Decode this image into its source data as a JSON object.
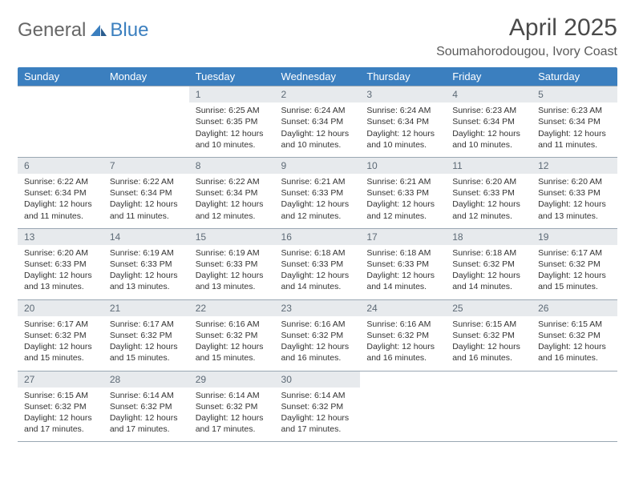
{
  "brand": {
    "part1": "General",
    "part2": "Blue"
  },
  "title": "April 2025",
  "location": "Soumahorodougou, Ivory Coast",
  "colors": {
    "header_bg": "#3b7fbf",
    "header_text": "#ffffff",
    "daynum_bg": "#e7eaed",
    "daynum_text": "#5d6a76",
    "rule": "#9aa7b3"
  },
  "weekdays": [
    "Sunday",
    "Monday",
    "Tuesday",
    "Wednesday",
    "Thursday",
    "Friday",
    "Saturday"
  ],
  "weeks": [
    [
      {
        "n": "",
        "sr": "",
        "ss": "",
        "dl": ""
      },
      {
        "n": "",
        "sr": "",
        "ss": "",
        "dl": ""
      },
      {
        "n": "1",
        "sr": "6:25 AM",
        "ss": "6:35 PM",
        "dl": "12 hours and 10 minutes."
      },
      {
        "n": "2",
        "sr": "6:24 AM",
        "ss": "6:34 PM",
        "dl": "12 hours and 10 minutes."
      },
      {
        "n": "3",
        "sr": "6:24 AM",
        "ss": "6:34 PM",
        "dl": "12 hours and 10 minutes."
      },
      {
        "n": "4",
        "sr": "6:23 AM",
        "ss": "6:34 PM",
        "dl": "12 hours and 10 minutes."
      },
      {
        "n": "5",
        "sr": "6:23 AM",
        "ss": "6:34 PM",
        "dl": "12 hours and 11 minutes."
      }
    ],
    [
      {
        "n": "6",
        "sr": "6:22 AM",
        "ss": "6:34 PM",
        "dl": "12 hours and 11 minutes."
      },
      {
        "n": "7",
        "sr": "6:22 AM",
        "ss": "6:34 PM",
        "dl": "12 hours and 11 minutes."
      },
      {
        "n": "8",
        "sr": "6:22 AM",
        "ss": "6:34 PM",
        "dl": "12 hours and 12 minutes."
      },
      {
        "n": "9",
        "sr": "6:21 AM",
        "ss": "6:33 PM",
        "dl": "12 hours and 12 minutes."
      },
      {
        "n": "10",
        "sr": "6:21 AM",
        "ss": "6:33 PM",
        "dl": "12 hours and 12 minutes."
      },
      {
        "n": "11",
        "sr": "6:20 AM",
        "ss": "6:33 PM",
        "dl": "12 hours and 12 minutes."
      },
      {
        "n": "12",
        "sr": "6:20 AM",
        "ss": "6:33 PM",
        "dl": "12 hours and 13 minutes."
      }
    ],
    [
      {
        "n": "13",
        "sr": "6:20 AM",
        "ss": "6:33 PM",
        "dl": "12 hours and 13 minutes."
      },
      {
        "n": "14",
        "sr": "6:19 AM",
        "ss": "6:33 PM",
        "dl": "12 hours and 13 minutes."
      },
      {
        "n": "15",
        "sr": "6:19 AM",
        "ss": "6:33 PM",
        "dl": "12 hours and 13 minutes."
      },
      {
        "n": "16",
        "sr": "6:18 AM",
        "ss": "6:33 PM",
        "dl": "12 hours and 14 minutes."
      },
      {
        "n": "17",
        "sr": "6:18 AM",
        "ss": "6:33 PM",
        "dl": "12 hours and 14 minutes."
      },
      {
        "n": "18",
        "sr": "6:18 AM",
        "ss": "6:32 PM",
        "dl": "12 hours and 14 minutes."
      },
      {
        "n": "19",
        "sr": "6:17 AM",
        "ss": "6:32 PM",
        "dl": "12 hours and 15 minutes."
      }
    ],
    [
      {
        "n": "20",
        "sr": "6:17 AM",
        "ss": "6:32 PM",
        "dl": "12 hours and 15 minutes."
      },
      {
        "n": "21",
        "sr": "6:17 AM",
        "ss": "6:32 PM",
        "dl": "12 hours and 15 minutes."
      },
      {
        "n": "22",
        "sr": "6:16 AM",
        "ss": "6:32 PM",
        "dl": "12 hours and 15 minutes."
      },
      {
        "n": "23",
        "sr": "6:16 AM",
        "ss": "6:32 PM",
        "dl": "12 hours and 16 minutes."
      },
      {
        "n": "24",
        "sr": "6:16 AM",
        "ss": "6:32 PM",
        "dl": "12 hours and 16 minutes."
      },
      {
        "n": "25",
        "sr": "6:15 AM",
        "ss": "6:32 PM",
        "dl": "12 hours and 16 minutes."
      },
      {
        "n": "26",
        "sr": "6:15 AM",
        "ss": "6:32 PM",
        "dl": "12 hours and 16 minutes."
      }
    ],
    [
      {
        "n": "27",
        "sr": "6:15 AM",
        "ss": "6:32 PM",
        "dl": "12 hours and 17 minutes."
      },
      {
        "n": "28",
        "sr": "6:14 AM",
        "ss": "6:32 PM",
        "dl": "12 hours and 17 minutes."
      },
      {
        "n": "29",
        "sr": "6:14 AM",
        "ss": "6:32 PM",
        "dl": "12 hours and 17 minutes."
      },
      {
        "n": "30",
        "sr": "6:14 AM",
        "ss": "6:32 PM",
        "dl": "12 hours and 17 minutes."
      },
      {
        "n": "",
        "sr": "",
        "ss": "",
        "dl": ""
      },
      {
        "n": "",
        "sr": "",
        "ss": "",
        "dl": ""
      },
      {
        "n": "",
        "sr": "",
        "ss": "",
        "dl": ""
      }
    ]
  ],
  "labels": {
    "sunrise": "Sunrise: ",
    "sunset": "Sunset: ",
    "daylight": "Daylight: "
  }
}
